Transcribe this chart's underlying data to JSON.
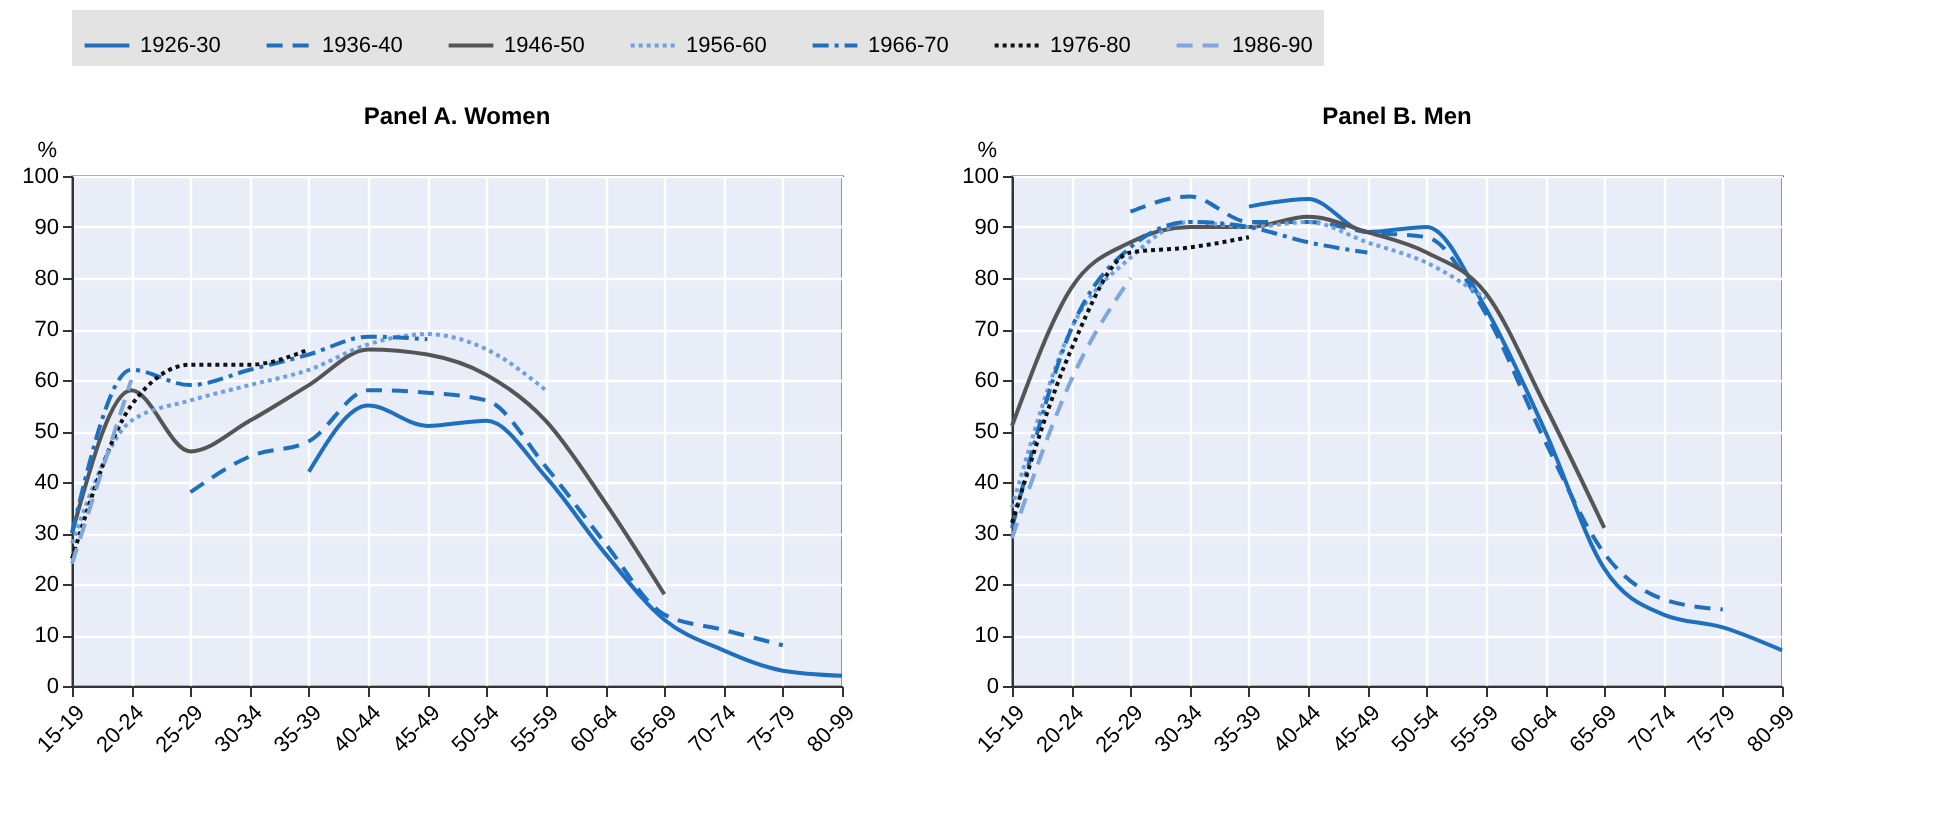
{
  "chart_data": [
    {
      "type": "line",
      "title": "Panel A. Women",
      "ylabel": "%",
      "categories": [
        "15-19",
        "20-24",
        "25-29",
        "30-34",
        "35-39",
        "40-44",
        "45-49",
        "50-54",
        "55-59",
        "60-64",
        "65-69",
        "70-74",
        "75-79",
        "80-99"
      ],
      "ylim": [
        0,
        100
      ],
      "yticks": [
        0,
        10,
        20,
        30,
        40,
        50,
        60,
        70,
        80,
        90,
        100
      ],
      "grid": true,
      "legend": "top",
      "series": [
        {
          "name": "1926-30",
          "color": "#1f6fbf",
          "line_style": "solid",
          "values": [
            null,
            null,
            null,
            null,
            42,
            55,
            51,
            52,
            41,
            26,
            13,
            7,
            3,
            2
          ]
        },
        {
          "name": "1936-40",
          "color": "#1f6fbf",
          "line_style": "dashed",
          "values": [
            null,
            null,
            38,
            45,
            48,
            58,
            57.5,
            56,
            43,
            28,
            14,
            11,
            8,
            null
          ]
        },
        {
          "name": "1946-50",
          "color": "#555555",
          "line_style": "solid",
          "values": [
            30,
            58,
            46,
            52,
            59,
            66,
            65,
            61,
            52,
            36,
            18,
            null,
            null,
            null
          ]
        },
        {
          "name": "1956-60",
          "color": "#6fa0e0",
          "line_style": "dotted",
          "values": [
            28,
            52,
            56,
            59,
            62,
            67,
            69,
            66,
            58,
            null,
            null,
            null,
            null,
            null
          ]
        },
        {
          "name": "1966-70",
          "color": "#1f6fbf",
          "line_style": "dashdot",
          "values": [
            30,
            62,
            59,
            62,
            65,
            68.5,
            68,
            null,
            null,
            null,
            null,
            null,
            null,
            null
          ]
        },
        {
          "name": "1976-80",
          "color": "#111111",
          "line_style": "dotted",
          "values": [
            25,
            55,
            63,
            63,
            66,
            null,
            null,
            null,
            null,
            null,
            null,
            null,
            null,
            null
          ]
        },
        {
          "name": "1986-90",
          "color": "#7fa6dd",
          "line_style": "dashed",
          "values": [
            24,
            60,
            null,
            null,
            null,
            null,
            null,
            null,
            null,
            null,
            null,
            null,
            null,
            null
          ]
        }
      ]
    },
    {
      "type": "line",
      "title": "Panel B. Men",
      "ylabel": "%",
      "categories": [
        "15-19",
        "20-24",
        "25-29",
        "30-34",
        "35-39",
        "40-44",
        "45-49",
        "50-54",
        "55-59",
        "60-64",
        "65-69",
        "70-74",
        "75-79",
        "80-99"
      ],
      "ylim": [
        0,
        100
      ],
      "yticks": [
        0,
        10,
        20,
        30,
        40,
        50,
        60,
        70,
        80,
        90,
        100
      ],
      "grid": true,
      "legend": "top",
      "series": [
        {
          "name": "1926-30",
          "color": "#1f6fbf",
          "line_style": "solid",
          "values": [
            null,
            null,
            null,
            null,
            94,
            95.5,
            89,
            90,
            74,
            50,
            23,
            14,
            11.5,
            7
          ]
        },
        {
          "name": "1936-40",
          "color": "#1f6fbf",
          "line_style": "dashed",
          "values": [
            null,
            null,
            93,
            96,
            91,
            91,
            89,
            88,
            73,
            48,
            26,
            17,
            15,
            null
          ]
        },
        {
          "name": "1946-50",
          "color": "#555555",
          "line_style": "solid",
          "values": [
            51,
            78,
            87,
            90,
            90,
            92,
            89,
            85,
            77,
            55,
            31,
            null,
            null,
            null
          ]
        },
        {
          "name": "1956-60",
          "color": "#6fa0e0",
          "line_style": "dotted",
          "values": [
            35,
            70,
            84,
            91,
            90,
            91,
            87,
            83,
            76,
            null,
            null,
            null,
            null,
            null
          ]
        },
        {
          "name": "1966-70",
          "color": "#1f6fbf",
          "line_style": "dashdot",
          "values": [
            31,
            70,
            86,
            91,
            90,
            87,
            85,
            null,
            null,
            null,
            null,
            null,
            null,
            null
          ]
        },
        {
          "name": "1976-80",
          "color": "#111111",
          "line_style": "dotted",
          "values": [
            32,
            66,
            85,
            86,
            88,
            null,
            null,
            null,
            null,
            null,
            null,
            null,
            null,
            null
          ]
        },
        {
          "name": "1986-90",
          "color": "#7fa6dd",
          "line_style": "dashed",
          "values": [
            29,
            60,
            80,
            null,
            null,
            null,
            null,
            null,
            null,
            null,
            null,
            null,
            null,
            null
          ]
        }
      ]
    }
  ]
}
